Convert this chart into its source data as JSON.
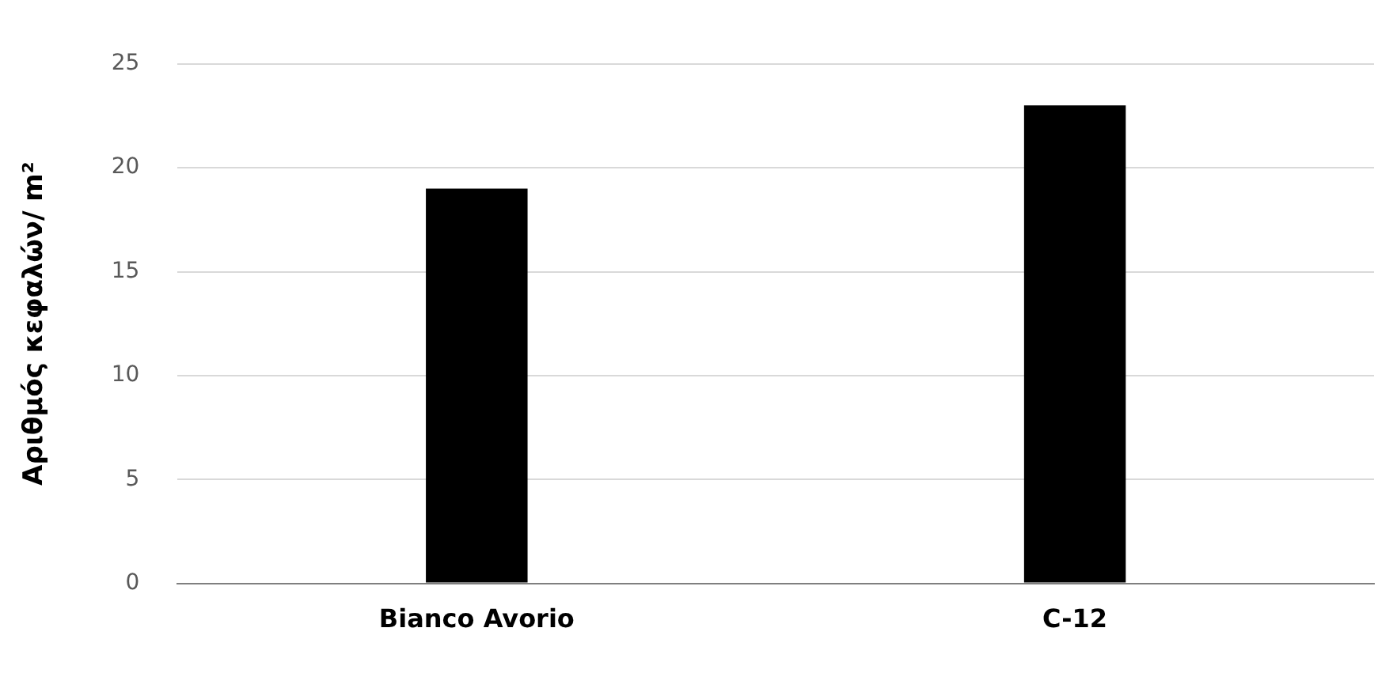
{
  "chart_data": {
    "type": "bar",
    "ylabel": "Αριθμός κεφαλών/ m²",
    "categories": [
      "Bianco Avorio",
      "C-12"
    ],
    "values": [
      19,
      23
    ],
    "color": "#000000",
    "ylim": [
      0,
      25
    ],
    "yticks": [
      0,
      5,
      10,
      15,
      20,
      25
    ],
    "grid": "y"
  }
}
